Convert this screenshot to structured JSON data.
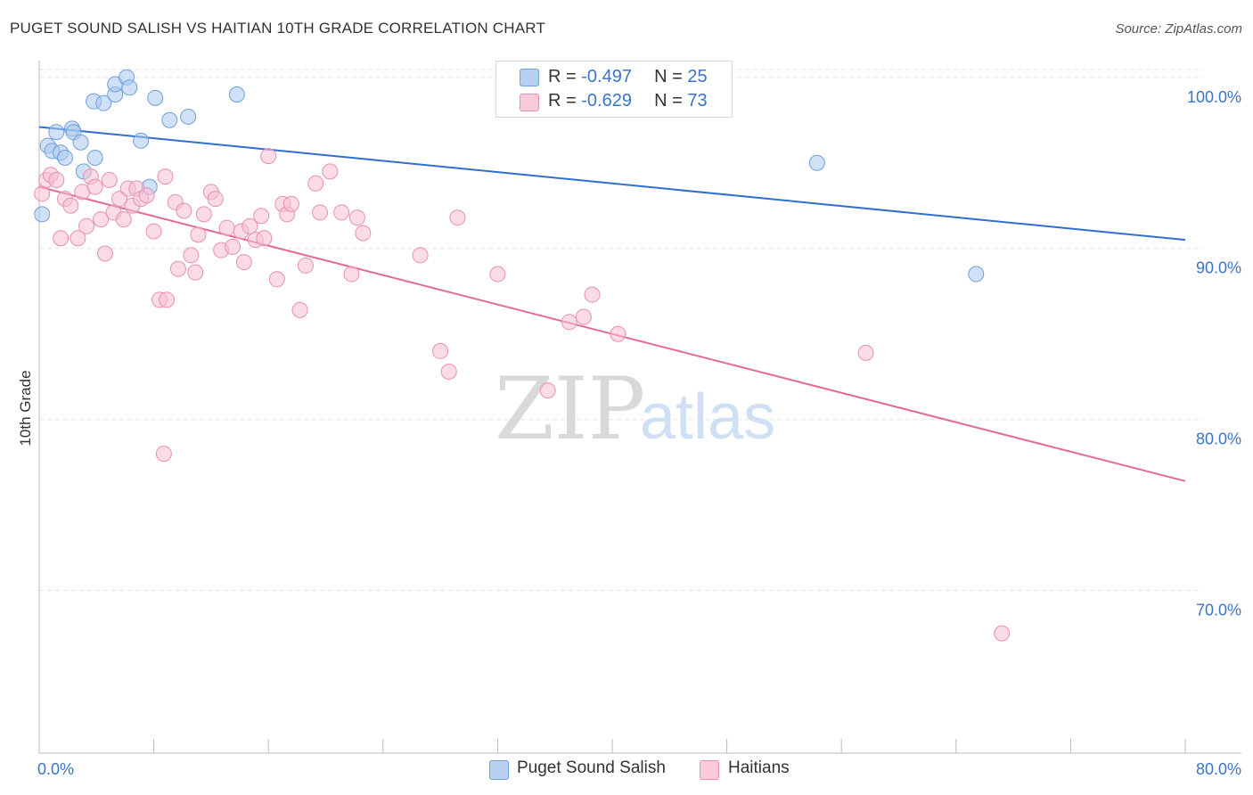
{
  "header": {
    "title": "PUGET SOUND SALISH VS HAITIAN 10TH GRADE CORRELATION CHART",
    "source": "Source: ZipAtlas.com"
  },
  "watermark": {
    "zip": "ZIP",
    "atlas": "atlas"
  },
  "legend_top": [
    {
      "r_label": "R = ",
      "r_value": "-0.497",
      "n_label": "N = ",
      "n_value": "25"
    },
    {
      "r_label": "R = ",
      "r_value": "-0.629",
      "n_label": "N = ",
      "n_value": "73"
    }
  ],
  "legend_bottom": [
    "Puget Sound Salish",
    "Haitians"
  ],
  "colors": {
    "blue_fill": "#a9c6ef",
    "blue_stroke": "#6f9fdd",
    "blue_line": "#2f6fcf",
    "pink_fill": "#f7bfd1",
    "pink_stroke": "#e98fb0",
    "pink_line": "#e46b97",
    "tick_label": "#3a74c9",
    "grid": "#e3e3e3"
  },
  "chart_data": {
    "type": "scatter",
    "title": "PUGET SOUND SALISH VS HAITIAN 10TH GRADE CORRELATION CHART",
    "xlabel": "",
    "ylabel": "10th Grade",
    "xlim": [
      0,
      80
    ],
    "ylim": [
      60.5,
      101.5
    ],
    "x_tick_labels": [
      {
        "value": 0,
        "label": "0.0%"
      },
      {
        "value": 80,
        "label": "80.0%"
      }
    ],
    "y_tick_labels": [
      {
        "value": 100,
        "label": "100.0%"
      },
      {
        "value": 90,
        "label": "90.0%"
      },
      {
        "value": 80,
        "label": "80.0%"
      },
      {
        "value": 70,
        "label": "70.0%"
      }
    ],
    "grid": true,
    "legend_placement": "bottom-center",
    "series": [
      {
        "name": "Puget Sound Salish",
        "r": -0.497,
        "n": 25,
        "trend": {
          "x": [
            0,
            80
          ],
          "y": [
            97.1,
            90.5
          ]
        },
        "points": [
          [
            0.2,
            92.0
          ],
          [
            0.6,
            96.0
          ],
          [
            0.9,
            95.7
          ],
          [
            1.2,
            96.8
          ],
          [
            1.5,
            95.6
          ],
          [
            1.8,
            95.3
          ],
          [
            2.3,
            97.0
          ],
          [
            2.4,
            96.8
          ],
          [
            2.9,
            96.2
          ],
          [
            3.1,
            94.5
          ],
          [
            3.9,
            95.3
          ],
          [
            3.8,
            98.6
          ],
          [
            4.5,
            98.5
          ],
          [
            5.3,
            99.0
          ],
          [
            5.3,
            99.6
          ],
          [
            6.1,
            100.0
          ],
          [
            6.3,
            99.4
          ],
          [
            7.1,
            96.3
          ],
          [
            7.7,
            93.6
          ],
          [
            8.1,
            98.8
          ],
          [
            9.1,
            97.5
          ],
          [
            10.4,
            97.7
          ],
          [
            13.8,
            99.0
          ],
          [
            54.3,
            95.0
          ],
          [
            65.4,
            88.5
          ]
        ]
      },
      {
        "name": "Haitians",
        "r": -0.629,
        "n": 73,
        "trend": {
          "x": [
            0,
            80
          ],
          "y": [
            93.6,
            76.4
          ]
        },
        "points": [
          [
            0.2,
            93.2
          ],
          [
            0.5,
            94.0
          ],
          [
            0.8,
            94.3
          ],
          [
            1.2,
            94.0
          ],
          [
            1.5,
            90.6
          ],
          [
            1.8,
            92.9
          ],
          [
            2.2,
            92.5
          ],
          [
            2.7,
            90.6
          ],
          [
            3.0,
            93.3
          ],
          [
            3.3,
            91.3
          ],
          [
            3.6,
            94.2
          ],
          [
            3.9,
            93.6
          ],
          [
            4.3,
            91.7
          ],
          [
            4.6,
            89.7
          ],
          [
            4.9,
            94.0
          ],
          [
            5.2,
            92.1
          ],
          [
            5.6,
            92.9
          ],
          [
            5.9,
            91.7
          ],
          [
            6.2,
            93.5
          ],
          [
            6.5,
            92.5
          ],
          [
            6.8,
            93.5
          ],
          [
            7.1,
            92.9
          ],
          [
            7.5,
            93.1
          ],
          [
            8.0,
            91.0
          ],
          [
            8.4,
            87.0
          ],
          [
            8.9,
            87.0
          ],
          [
            8.8,
            94.2
          ],
          [
            9.5,
            92.7
          ],
          [
            9.7,
            88.8
          ],
          [
            10.1,
            92.2
          ],
          [
            10.6,
            89.6
          ],
          [
            10.9,
            88.6
          ],
          [
            11.1,
            90.8
          ],
          [
            11.5,
            92.0
          ],
          [
            12.0,
            93.3
          ],
          [
            12.3,
            92.9
          ],
          [
            12.7,
            89.9
          ],
          [
            13.1,
            91.2
          ],
          [
            13.5,
            90.1
          ],
          [
            14.1,
            91.0
          ],
          [
            14.3,
            89.2
          ],
          [
            14.7,
            91.3
          ],
          [
            15.1,
            90.5
          ],
          [
            15.5,
            91.9
          ],
          [
            15.7,
            90.6
          ],
          [
            16.0,
            95.4
          ],
          [
            16.6,
            88.2
          ],
          [
            17.0,
            92.6
          ],
          [
            17.3,
            92.0
          ],
          [
            17.6,
            92.6
          ],
          [
            18.2,
            86.4
          ],
          [
            18.6,
            89.0
          ],
          [
            19.3,
            93.8
          ],
          [
            19.6,
            92.1
          ],
          [
            20.3,
            94.5
          ],
          [
            21.1,
            92.1
          ],
          [
            21.8,
            88.5
          ],
          [
            22.2,
            91.8
          ],
          [
            22.6,
            90.9
          ],
          [
            26.6,
            89.6
          ],
          [
            28.0,
            84.0
          ],
          [
            28.6,
            82.8
          ],
          [
            29.2,
            91.8
          ],
          [
            32.0,
            88.5
          ],
          [
            35.5,
            81.7
          ],
          [
            37.0,
            85.7
          ],
          [
            38.0,
            86.0
          ],
          [
            38.6,
            87.3
          ],
          [
            40.4,
            85.0
          ],
          [
            57.7,
            83.9
          ],
          [
            67.2,
            67.5
          ],
          [
            8.7,
            78.0
          ],
          [
            32.6,
            100.0
          ]
        ]
      }
    ]
  }
}
